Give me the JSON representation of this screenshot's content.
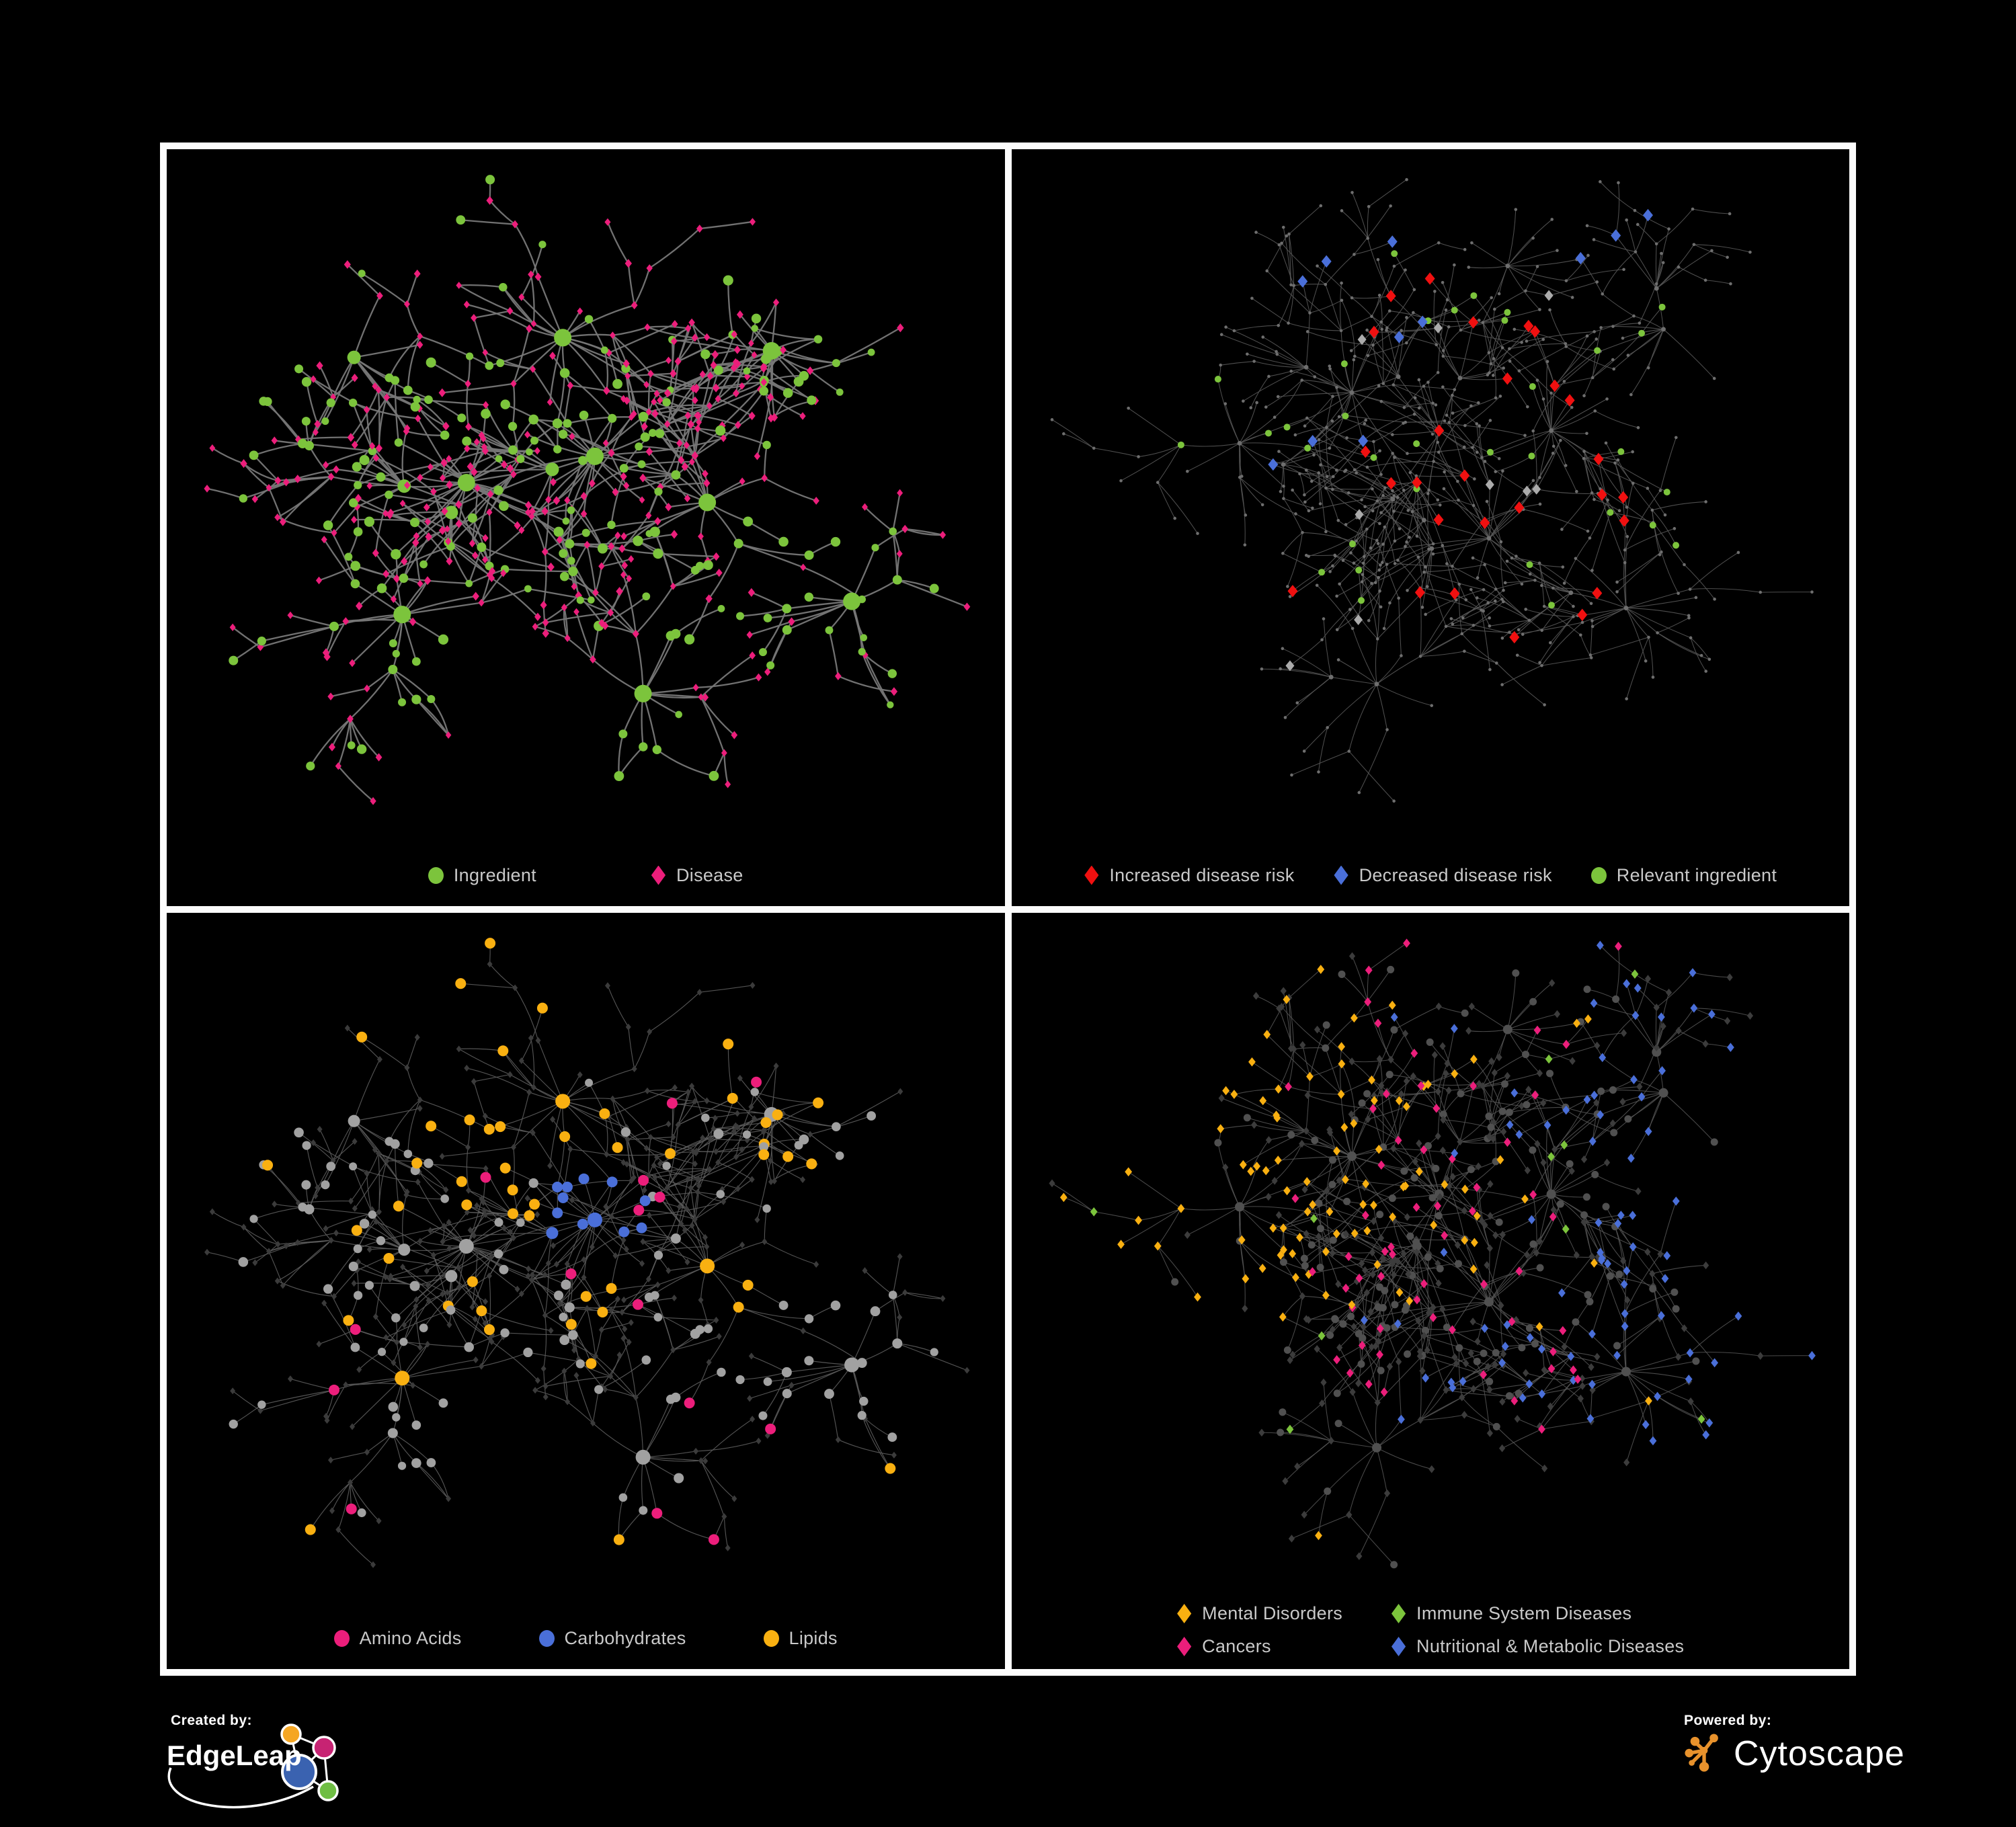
{
  "branding": {
    "created_by_label": "Created by:",
    "created_by_name": "EdgeLeap",
    "powered_by_label": "Powered by:",
    "powered_by_name": "Cytoscape"
  },
  "colors": {
    "background": "#000000",
    "frame": "#FCFCFC",
    "legend_text": "#C9C9C9",
    "green": "#7CC43C",
    "magenta": "#EC1E7B",
    "red": "#F01010",
    "blue": "#4A6FD9",
    "gold": "#F9B011",
    "gray_highlight": "#ABABAB",
    "edgeleap_blue": "#3A62B0",
    "edgeleap_orange": "#F5A623",
    "edgeleap_magenta": "#C72373",
    "edgeleap_green": "#6FBE44",
    "cytoscape_orange": "#E8922C"
  },
  "panels": [
    {
      "name": "ingredient-disease-network",
      "layout": "A",
      "legend_style": "gap-xl",
      "legend": [
        {
          "label": "Ingredient",
          "shape": "circle",
          "color": "#7CC43C"
        },
        {
          "label": "Disease",
          "shape": "diamond",
          "color": "#EC1E7B"
        }
      ],
      "groups": [
        {
          "name": "Ingredient",
          "shape": "circle",
          "color": "#7CC43C",
          "count": 175
        },
        {
          "name": "Disease",
          "shape": "diamond",
          "color": "#EC1E7B",
          "count": 345
        }
      ]
    },
    {
      "name": "disease-risk-network",
      "layout": "B",
      "legend_style": "gap-m",
      "legend": [
        {
          "label": "Increased disease risk",
          "shape": "diamond",
          "color": "#F01010"
        },
        {
          "label": "Decreased disease risk",
          "shape": "diamond",
          "color": "#4A6FD9"
        },
        {
          "label": "Relevant ingredient",
          "shape": "circle",
          "color": "#7CC43C"
        }
      ],
      "groups": [
        {
          "name": "Increased disease risk",
          "shape": "diamond",
          "color": "#F01010",
          "count": 27
        },
        {
          "name": "Decreased disease risk",
          "shape": "diamond",
          "color": "#4A6FD9",
          "count": 11
        },
        {
          "name": "Unclassified risk",
          "shape": "diamond",
          "color": "#ABABAB",
          "count": 9
        },
        {
          "name": "Relevant ingredient",
          "shape": "circle",
          "color": "#7CC43C",
          "count": 33
        }
      ]
    },
    {
      "name": "nutrient-class-network",
      "layout": "A",
      "legend_style": "gap-l",
      "legend": [
        {
          "label": "Amino Acids",
          "shape": "circle",
          "color": "#EC1E7B"
        },
        {
          "label": "Carbohydrates",
          "shape": "circle",
          "color": "#4A6FD9"
        },
        {
          "label": "Lipids",
          "shape": "circle",
          "color": "#F9B011"
        }
      ],
      "groups": [
        {
          "name": "Amino Acids",
          "shape": "circle",
          "color": "#EC1E7B",
          "count": 15
        },
        {
          "name": "Carbohydrates",
          "shape": "circle",
          "color": "#4A6FD9",
          "count": 12
        },
        {
          "name": "Lipids",
          "shape": "circle",
          "color": "#F9B011",
          "count": 52
        }
      ]
    },
    {
      "name": "disease-class-network",
      "layout": "B",
      "legend_style": "legend-grid",
      "legend": [
        {
          "label": "Mental Disorders",
          "shape": "diamond",
          "color": "#F9B011"
        },
        {
          "label": "Immune System Diseases",
          "shape": "diamond",
          "color": "#7CC43C"
        },
        {
          "label": "Cancers",
          "shape": "diamond",
          "color": "#EC1E7B"
        },
        {
          "label": "Nutritional & Metabolic Diseases",
          "shape": "diamond",
          "color": "#4A6FD9"
        }
      ],
      "groups": [
        {
          "name": "Mental Disorders",
          "shape": "diamond",
          "color": "#F9B011",
          "count": 90
        },
        {
          "name": "Immune System Diseases",
          "shape": "diamond",
          "color": "#7CC43C",
          "count": 10
        },
        {
          "name": "Cancers",
          "shape": "diamond",
          "color": "#EC1E7B",
          "count": 60
        },
        {
          "name": "Nutritional & Metabolic Diseases",
          "shape": "diamond",
          "color": "#4A6FD9",
          "count": 80
        }
      ]
    }
  ]
}
